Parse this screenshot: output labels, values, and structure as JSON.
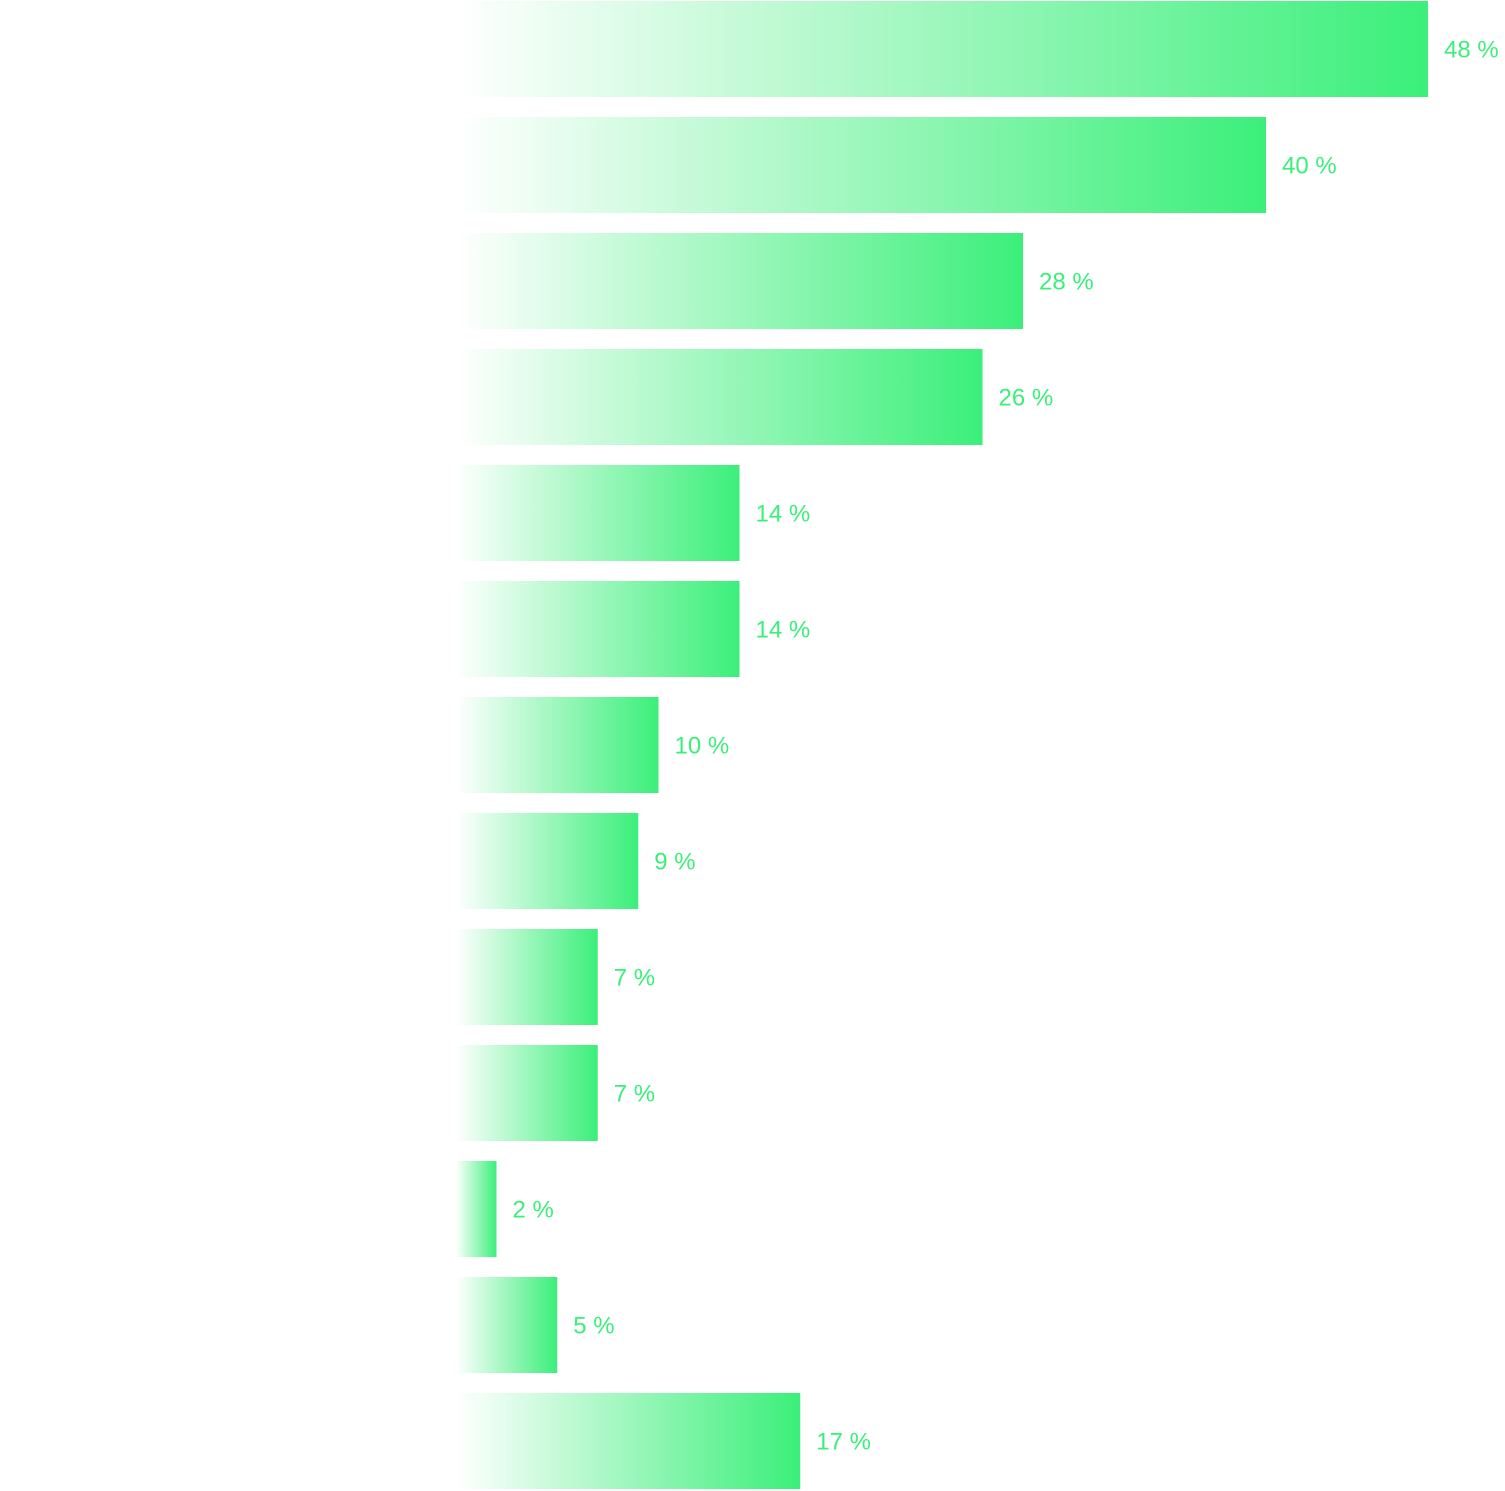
{
  "chart_data": {
    "type": "bar",
    "orientation": "horizontal",
    "categories": [
      null,
      null,
      null,
      null,
      null,
      null,
      null,
      null,
      null,
      null,
      null,
      null,
      null
    ],
    "values": [
      48,
      40,
      28,
      26,
      14,
      14,
      10,
      9,
      7,
      7,
      2,
      5,
      17
    ],
    "value_labels": [
      "48 %",
      "40 %",
      "28 %",
      "26 %",
      "14 %",
      "14 %",
      "10 %",
      "9 %",
      "7 %",
      "7 %",
      "2 %",
      "5 %",
      "17 %"
    ],
    "color": "#3bef7a"
  }
}
